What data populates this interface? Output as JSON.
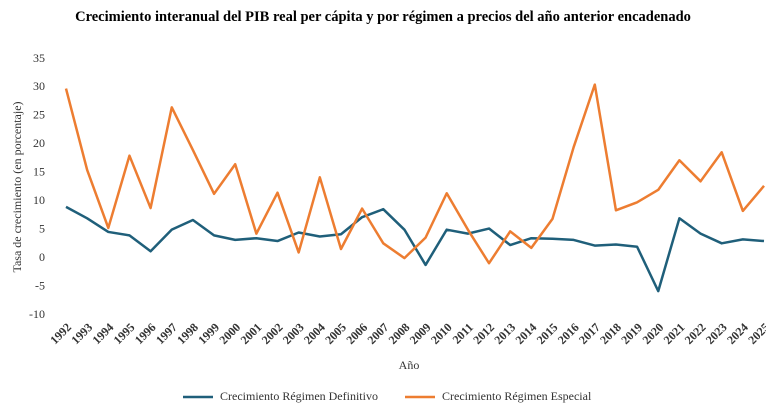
{
  "chart_data": {
    "type": "line",
    "title": "Crecimiento interanual del PIB real per cápita y por régimen a precios del año anterior encadenado",
    "x_label": "Año",
    "y_label": "Tasa de crecimiento (en porcentaje)",
    "categories": [
      "1992",
      "1993",
      "1994",
      "1995",
      "1996",
      "1997",
      "1998",
      "1999",
      "2000",
      "2001",
      "2002",
      "2003",
      "2004",
      "2005",
      "2006",
      "2007",
      "2008",
      "2009",
      "2010",
      "2011",
      "2012",
      "2013",
      "2014",
      "2015",
      "2016",
      "2017",
      "2018",
      "2019",
      "2020",
      "2021",
      "2022",
      "2023",
      "2024",
      "2025"
    ],
    "series": [
      {
        "name": "Crecimiento Régimen Definitivo",
        "color": "#1f5f7a",
        "values": [
          9,
          7,
          4.6,
          4,
          1.2,
          5,
          6.7,
          4,
          3.2,
          3.5,
          3,
          4.5,
          3.8,
          4.2,
          7.2,
          8.6,
          5,
          -1.2,
          5,
          4.3,
          5.2,
          2.3,
          3.5,
          3.4,
          3.2,
          2.2,
          2.4,
          2,
          -5.8,
          7,
          4.3,
          2.6,
          3.3,
          3
        ]
      },
      {
        "name": "Crecimiento Régimen Especial",
        "color": "#ed7d31",
        "values": [
          29.8,
          15.5,
          5.3,
          18,
          8.8,
          26.5,
          19,
          11.3,
          16.5,
          4.3,
          11.5,
          1,
          14.2,
          1.6,
          8.7,
          2.6,
          0,
          3.6,
          11.4,
          5,
          -0.9,
          4.7,
          1.8,
          6.9,
          19.5,
          30.5,
          8.4,
          9.8,
          12,
          17.2,
          13.5,
          18.6,
          8.3,
          12.7
        ]
      }
    ],
    "ylim": [
      -10,
      35
    ],
    "yticks": [
      -10,
      -5,
      0,
      5,
      10,
      15,
      20,
      25,
      30,
      35
    ],
    "grid": false,
    "legend": "bottom"
  }
}
